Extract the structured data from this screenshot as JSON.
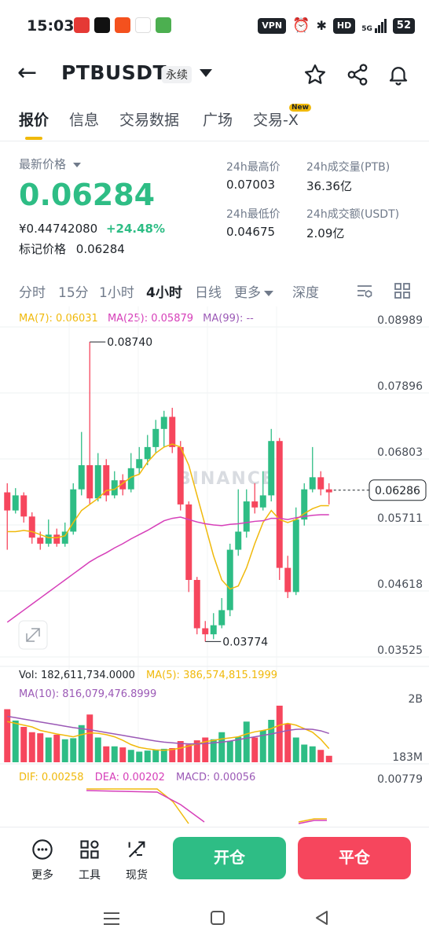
{
  "status": {
    "time": "15:03",
    "vpn": "VPN",
    "hd": "HD",
    "net": "5G",
    "battery": "52"
  },
  "header": {
    "symbol": "PTBUSDT",
    "contract_type": "永续"
  },
  "tabs": [
    {
      "label": "报价"
    },
    {
      "label": "信息"
    },
    {
      "label": "交易数据"
    },
    {
      "label": "广场"
    },
    {
      "label": "交易-X",
      "badge": "New"
    }
  ],
  "ticker": {
    "last_label": "最新价格",
    "last_price": "0.06284",
    "cny_price": "¥0.44742080",
    "change": "+24.48%",
    "mark_label": "标记价格",
    "mark_price": "0.06284",
    "high_label": "24h最高价",
    "high": "0.07003",
    "low_label": "24h最低价",
    "low": "0.04675",
    "vol_label": "24h成交量(PTB)",
    "vol": "36.36亿",
    "amount_label": "24h成交额(USDT)",
    "amount": "2.09亿"
  },
  "intervals": [
    "分时",
    "15分",
    "1小时",
    "4小时",
    "日线",
    "更多",
    "深度"
  ],
  "colors": {
    "up": "#2ebd85",
    "down": "#f6465d",
    "ma7": "#f0b90b",
    "ma25": "#d63fb9",
    "ma99": "#9b59b6",
    "accent": "#f0b90b"
  },
  "chart_data": {
    "type": "candlestick",
    "ma_labels": {
      "ma7": "MA(7): 0.06031",
      "ma25": "MA(25): 0.05879",
      "ma99": "MA(99): --"
    },
    "y_ticks": [
      "0.08989",
      "0.07896",
      "0.06803",
      "0.05711",
      "0.04618",
      "0.03525"
    ],
    "ylim": [
      0.03525,
      0.08989
    ],
    "current_price": "0.06286",
    "max_label": "0.08740",
    "min_label": "0.03774",
    "watermark": "BINANCE",
    "candles": [
      [
        0.0625,
        0.0595,
        0.064,
        0.053
      ],
      [
        0.0595,
        0.062,
        0.0632,
        0.059
      ],
      [
        0.062,
        0.0585,
        0.0625,
        0.0575
      ],
      [
        0.0585,
        0.055,
        0.0592,
        0.054
      ],
      [
        0.055,
        0.054,
        0.056,
        0.053
      ],
      [
        0.054,
        0.0555,
        0.058,
        0.0535
      ],
      [
        0.0555,
        0.054,
        0.0565,
        0.0535
      ],
      [
        0.054,
        0.056,
        0.0575,
        0.0535
      ],
      [
        0.056,
        0.063,
        0.064,
        0.0555
      ],
      [
        0.063,
        0.067,
        0.0725,
        0.062
      ],
      [
        0.067,
        0.0615,
        0.0874,
        0.0605
      ],
      [
        0.0615,
        0.067,
        0.069,
        0.061
      ],
      [
        0.067,
        0.062,
        0.068,
        0.061
      ],
      [
        0.062,
        0.0645,
        0.066,
        0.0615
      ],
      [
        0.0645,
        0.063,
        0.0655,
        0.062
      ],
      [
        0.063,
        0.0665,
        0.069,
        0.0625
      ],
      [
        0.0665,
        0.068,
        0.07,
        0.0655
      ],
      [
        0.068,
        0.07,
        0.072,
        0.067
      ],
      [
        0.07,
        0.073,
        0.0745,
        0.069
      ],
      [
        0.073,
        0.075,
        0.076,
        0.07
      ],
      [
        0.075,
        0.07,
        0.0765,
        0.069
      ],
      [
        0.07,
        0.0605,
        0.071,
        0.0595
      ],
      [
        0.0605,
        0.048,
        0.061,
        0.046
      ],
      [
        0.048,
        0.04,
        0.0485,
        0.039
      ],
      [
        0.04,
        0.039,
        0.0412,
        0.0378
      ],
      [
        0.039,
        0.0405,
        0.0425,
        0.0382
      ],
      [
        0.0405,
        0.043,
        0.045,
        0.04
      ],
      [
        0.043,
        0.053,
        0.054,
        0.042
      ],
      [
        0.053,
        0.056,
        0.063,
        0.052
      ],
      [
        0.056,
        0.061,
        0.063,
        0.055
      ],
      [
        0.061,
        0.06,
        0.064,
        0.059
      ],
      [
        0.06,
        0.062,
        0.066,
        0.0595
      ],
      [
        0.062,
        0.071,
        0.073,
        0.061
      ],
      [
        0.071,
        0.05,
        0.0715,
        0.048
      ],
      [
        0.05,
        0.046,
        0.052,
        0.045
      ],
      [
        0.046,
        0.058,
        0.06,
        0.0455
      ],
      [
        0.058,
        0.063,
        0.064,
        0.057
      ],
      [
        0.063,
        0.065,
        0.07,
        0.0625
      ],
      [
        0.065,
        0.063,
        0.066,
        0.062
      ],
      [
        0.063,
        0.0625,
        0.064,
        0.0605
      ]
    ],
    "ma7": [
      0.056,
      0.056,
      0.0562,
      0.056,
      0.0555,
      0.055,
      0.055,
      0.0553,
      0.0575,
      0.0595,
      0.0605,
      0.0615,
      0.0628,
      0.063,
      0.064,
      0.065,
      0.0655,
      0.0675,
      0.069,
      0.07,
      0.0705,
      0.07,
      0.067,
      0.062,
      0.057,
      0.052,
      0.048,
      0.0465,
      0.047,
      0.05,
      0.054,
      0.0575,
      0.0595,
      0.058,
      0.0575,
      0.058,
      0.059,
      0.0598,
      0.0603,
      0.0603
    ],
    "ma25": [
      0.041,
      0.042,
      0.043,
      0.044,
      0.045,
      0.046,
      0.047,
      0.048,
      0.049,
      0.05,
      0.051,
      0.0518,
      0.0525,
      0.0533,
      0.054,
      0.0548,
      0.0555,
      0.0562,
      0.057,
      0.0578,
      0.0582,
      0.0584,
      0.058,
      0.0576,
      0.0573,
      0.0571,
      0.057,
      0.0572,
      0.0573,
      0.0575,
      0.0577,
      0.0578,
      0.0582,
      0.0582,
      0.058,
      0.0583,
      0.0585,
      0.0587,
      0.0588,
      0.0588
    ]
  },
  "volume_panel": {
    "vol_label": "Vol: 182,611,734.0000",
    "ma5_label": "MA(5): 386,574,815.1999",
    "ma10_label": "MA(10): 816,079,476.8999",
    "top_label": "2B",
    "bottom_label": "183M",
    "ymax": 2000,
    "volumes_m": [
      1500,
      1180,
      1000,
      850,
      820,
      700,
      780,
      650,
      680,
      1050,
      1350,
      700,
      450,
      450,
      420,
      350,
      300,
      330,
      350,
      380,
      400,
      600,
      500,
      620,
      700,
      650,
      850,
      600,
      720,
      1150,
      700,
      900,
      1200,
      1600,
      1100,
      700,
      500,
      450,
      350,
      183
    ],
    "ma5": [
      1150,
      1100,
      1050,
      1000,
      900,
      850,
      800,
      760,
      720,
      780,
      830,
      820,
      780,
      720,
      620,
      500,
      420,
      380,
      350,
      340,
      360,
      400,
      460,
      520,
      580,
      620,
      660,
      690,
      720,
      800,
      860,
      900,
      950,
      1050,
      1100,
      1050,
      950,
      850,
      650,
      387
    ],
    "ma10": [
      1300,
      1260,
      1220,
      1180,
      1140,
      1100,
      1060,
      1020,
      980,
      950,
      920,
      880,
      840,
      800,
      760,
      720,
      680,
      640,
      600,
      570,
      550,
      530,
      520,
      520,
      530,
      550,
      570,
      600,
      640,
      680,
      720,
      760,
      800,
      850,
      900,
      930,
      940,
      930,
      890,
      816
    ]
  },
  "macd_panel": {
    "dif_label": "DIF: 0.00258",
    "dea_label": "DEA: 0.00202",
    "macd_label": "MACD: 0.00056",
    "top_label": "0.00779"
  },
  "bottom_bar": {
    "more": "更多",
    "tools": "工具",
    "spot": "现货",
    "open": "开仓",
    "close": "平仓"
  }
}
